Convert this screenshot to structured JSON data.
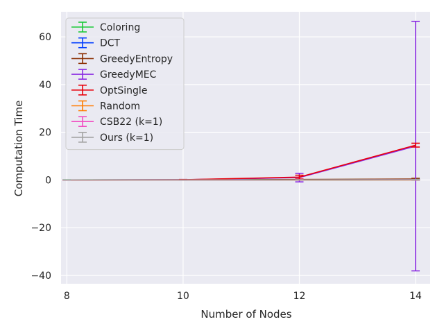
{
  "chart_data": {
    "type": "line",
    "title": "",
    "xlabel": "Number of Nodes",
    "ylabel": "Computation Time",
    "x": [
      8,
      10,
      12,
      14
    ],
    "xticks": [
      "8",
      "10",
      "12",
      "14"
    ],
    "yticks": [
      "−40",
      "−20",
      "0",
      "20",
      "40",
      "60"
    ],
    "ytick_values": [
      -40,
      -20,
      0,
      20,
      40,
      60
    ],
    "xlim": [
      7.9,
      14.25
    ],
    "ylim": [
      -43.5,
      70.5
    ],
    "grid": true,
    "legend_position": "upper-left",
    "series": [
      {
        "name": "Coloring",
        "color": "#1ac938",
        "values": [
          0.05,
          0.08,
          0.15,
          0.3
        ],
        "err": [
          0.02,
          0.03,
          0.1,
          0.3
        ]
      },
      {
        "name": "DCT",
        "color": "#023eff",
        "values": [
          0.01,
          0.01,
          0.02,
          0.05
        ],
        "err": [
          0.005,
          0.005,
          0.02,
          0.05
        ]
      },
      {
        "name": "GreedyEntropy",
        "color": "#8b2e00",
        "values": [
          0.02,
          0.05,
          0.2,
          0.4
        ],
        "err": [
          0.01,
          0.03,
          0.1,
          0.3
        ]
      },
      {
        "name": "GreedyMEC",
        "color": "#8b2be2",
        "values": [
          0.01,
          0.1,
          1.0,
          14.2
        ],
        "err": [
          0.01,
          0.1,
          1.8,
          52.3
        ]
      },
      {
        "name": "OptSingle",
        "color": "#e8000b",
        "values": [
          0.01,
          0.1,
          1.2,
          14.6
        ],
        "err": [
          0.01,
          0.1,
          0.8,
          0.8
        ]
      },
      {
        "name": "Random",
        "color": "#ff7c00",
        "values": [
          0.0,
          0.0,
          0.0,
          0.0
        ],
        "err": [
          0.0,
          0.0,
          0.0,
          0.0
        ]
      },
      {
        "name": "CSB22 (k=1)",
        "color": "#f14cc1",
        "values": [
          0.01,
          0.02,
          0.05,
          0.1
        ],
        "err": [
          0.01,
          0.01,
          0.05,
          0.1
        ]
      },
      {
        "name": "Ours (k=1)",
        "color": "#a3a3a3",
        "values": [
          0.01,
          0.02,
          0.05,
          0.1
        ],
        "err": [
          0.01,
          0.01,
          0.05,
          0.1
        ]
      }
    ]
  }
}
